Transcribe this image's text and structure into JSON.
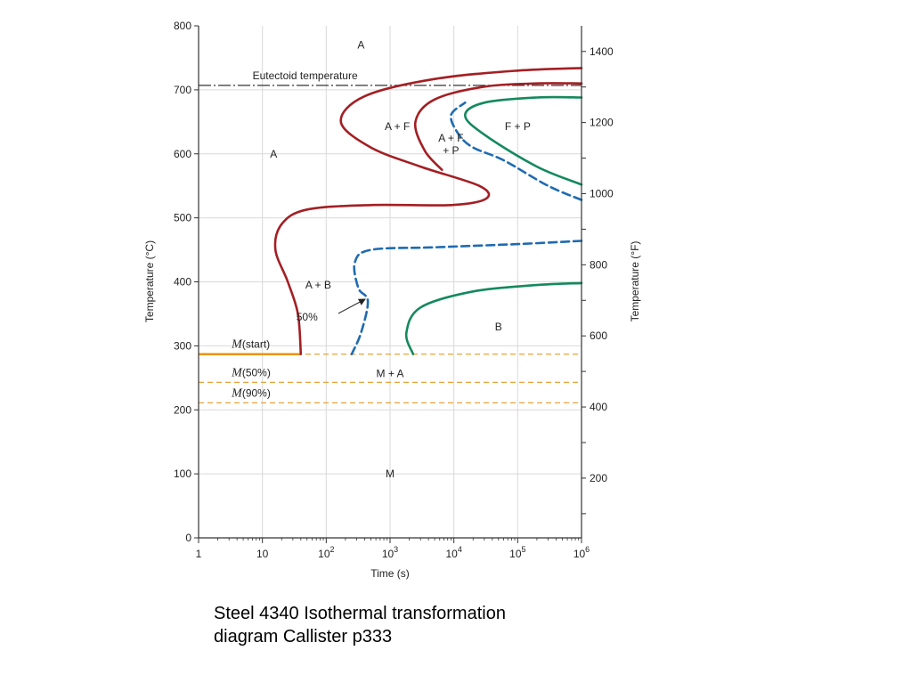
{
  "chart_data": {
    "type": "line",
    "title": "",
    "xlabel": "Time (s)",
    "ylabel": "Temperature (°C)",
    "ylabel_right": "Temperature (°F)",
    "xscale": "log",
    "xlim": [
      1,
      1000000
    ],
    "ylim": [
      0,
      800
    ],
    "ylim_right": [
      32,
      1472
    ],
    "grid": true,
    "x_ticks": [
      {
        "value": 1,
        "base": "1",
        "exp": ""
      },
      {
        "value": 10,
        "base": "10",
        "exp": ""
      },
      {
        "value": 100,
        "base": "10",
        "exp": "2"
      },
      {
        "value": 1000,
        "base": "10",
        "exp": "3"
      },
      {
        "value": 10000,
        "base": "10",
        "exp": "4"
      },
      {
        "value": 100000,
        "base": "10",
        "exp": "5"
      },
      {
        "value": 1000000,
        "base": "10",
        "exp": "6"
      }
    ],
    "y_ticks": [
      "0",
      "100",
      "200",
      "300",
      "400",
      "500",
      "600",
      "700",
      "800"
    ],
    "y_right_ticks": [
      "200",
      "400",
      "600",
      "800",
      "1000",
      "1200",
      "1400"
    ],
    "eutectoid": {
      "label": "Eutectoid temperature",
      "temperature": 707
    },
    "martensite": [
      {
        "label_m": "M",
        "label_rest": "(start)",
        "temperature": 287
      },
      {
        "label_m": "M",
        "label_rest": "(50%)",
        "temperature": 243
      },
      {
        "label_m": "M",
        "label_rest": "(90%)",
        "temperature": 211
      }
    ],
    "series": [
      {
        "style": "start",
        "color": "#a31f24",
        "points": [
          [
            40,
            287
          ],
          [
            36,
            350
          ],
          [
            25,
            400
          ],
          [
            16,
            450
          ],
          [
            20,
            490
          ],
          [
            50,
            513
          ],
          [
            500,
            520
          ],
          [
            9000,
            520
          ],
          [
            32000,
            530
          ],
          [
            25000,
            550
          ],
          [
            3000,
            580
          ],
          [
            500,
            610
          ],
          [
            170,
            650
          ],
          [
            400,
            690
          ],
          [
            5000,
            717
          ],
          [
            100000,
            730
          ],
          [
            1000000,
            734
          ]
        ]
      },
      {
        "style": "start",
        "color": "#a31f24",
        "points": [
          [
            6500,
            575
          ],
          [
            3500,
            605
          ],
          [
            2500,
            650
          ],
          [
            5000,
            685
          ],
          [
            30000,
            705
          ],
          [
            200000,
            710
          ],
          [
            1000000,
            710
          ]
        ]
      },
      {
        "style": "50%",
        "color": "#1f6bb0",
        "points": [
          [
            1000000,
            528
          ],
          [
            300000,
            550
          ],
          [
            60000,
            590
          ],
          [
            20000,
            610
          ],
          [
            12000,
            630
          ],
          [
            9000,
            660
          ],
          [
            15000,
            680
          ]
        ]
      },
      {
        "style": "50%",
        "color": "#1f6bb0",
        "points": [
          [
            1000000,
            464
          ],
          [
            100000,
            459
          ],
          [
            5000,
            454
          ],
          [
            500,
            450
          ],
          [
            280,
            430
          ],
          [
            320,
            390
          ],
          [
            450,
            370
          ],
          [
            350,
            320
          ],
          [
            250,
            287
          ]
        ]
      },
      {
        "style": "finish",
        "color": "#14895e",
        "points": [
          [
            1000000,
            552
          ],
          [
            200000,
            580
          ],
          [
            30000,
            630
          ],
          [
            15000,
            660
          ],
          [
            30000,
            680
          ],
          [
            200000,
            688
          ],
          [
            1000000,
            688
          ]
        ]
      },
      {
        "style": "finish",
        "color": "#14895e",
        "points": [
          [
            2300,
            287
          ],
          [
            1800,
            320
          ],
          [
            3000,
            360
          ],
          [
            20000,
            385
          ],
          [
            200000,
            395
          ],
          [
            1000000,
            398
          ]
        ]
      }
    ],
    "annotations": [
      {
        "text": "A",
        "x": 350,
        "y": 770
      },
      {
        "text": "A",
        "x": 15,
        "y": 600
      },
      {
        "text": "A + F",
        "x": 1300,
        "y": 643
      },
      {
        "text": "A + F",
        "x": 9000,
        "y": 625
      },
      {
        "text": "+ P",
        "x": 9000,
        "y": 605
      },
      {
        "text": "F + P",
        "x": 100000,
        "y": 643
      },
      {
        "text": "A + B",
        "x": 75,
        "y": 395
      },
      {
        "text": "50%",
        "x": 50,
        "y": 345
      },
      {
        "text": "B",
        "x": 50000,
        "y": 330
      },
      {
        "text": "M + A",
        "x": 1000,
        "y": 257
      },
      {
        "text": "M",
        "x": 1000,
        "y": 100
      }
    ]
  },
  "caption": {
    "line1": "Steel 4340 Isothermal transformation",
    "line2": "diagram Callister p333"
  }
}
